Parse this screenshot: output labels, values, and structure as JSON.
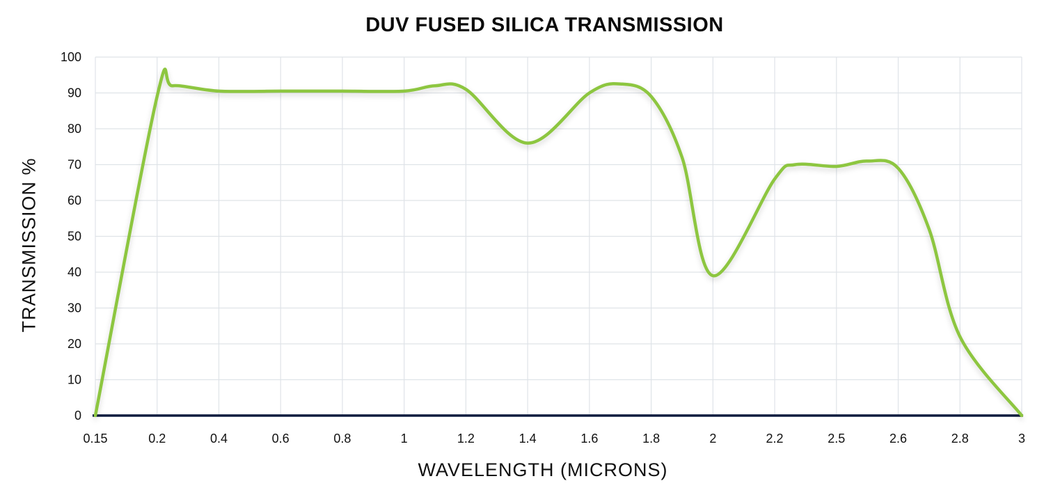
{
  "chart_data": {
    "type": "line",
    "title": "DUV FUSED SILICA TRANSMISSION",
    "xlabel": "WAVELENGTH (MICRONS)",
    "ylabel": "TRANSMISSION %",
    "x_ticks": [
      "0.15",
      "0.2",
      "0.4",
      "0.6",
      "0.8",
      "1",
      "1.2",
      "1.4",
      "1.6",
      "1.8",
      "2",
      "2.2",
      "2.5",
      "2.6",
      "2.8",
      "3"
    ],
    "y_ticks": [
      "0",
      "10",
      "20",
      "30",
      "40",
      "50",
      "60",
      "70",
      "80",
      "90",
      "100"
    ],
    "ylim": [
      0,
      100
    ],
    "grid": true,
    "x_axis_kind": "categorical",
    "series": [
      {
        "color": "#8dc63f",
        "x": [
          "0.15",
          "0.2",
          "0.25",
          "0.4",
          "0.6",
          "0.8",
          "1",
          "1.1",
          "1.2",
          "1.4",
          "1.6",
          "1.7",
          "1.8",
          "1.9",
          "2",
          "2.2",
          "2.3",
          "2.5",
          "2.55",
          "2.6",
          "2.7",
          "2.8",
          "3"
        ],
        "values": [
          0,
          89,
          92,
          90.5,
          90.5,
          90.5,
          90.5,
          92,
          91,
          76,
          90,
          92.5,
          89,
          72,
          39,
          66,
          70,
          69.5,
          71,
          69,
          52,
          22,
          0
        ]
      }
    ],
    "baseline_color": "#0d1b3e",
    "grid_color": "#dfe3e8"
  }
}
